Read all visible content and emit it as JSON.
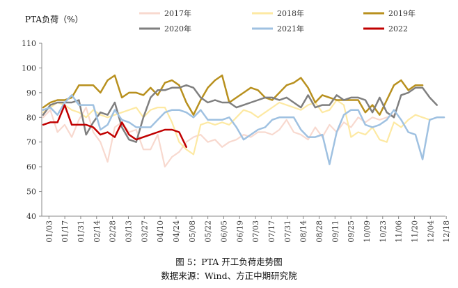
{
  "chart_data": {
    "type": "line",
    "ylabel": "PTA负荷（%）",
    "xlabel": "",
    "ylim": [
      40,
      110
    ],
    "yticks": [
      40,
      50,
      60,
      70,
      80,
      90,
      100,
      110
    ],
    "grid": false,
    "legend_position": "top",
    "x_tick_labels": [
      "01/03",
      "01/17",
      "01/31",
      "02/14",
      "02/28",
      "03/13",
      "03/27",
      "04/10",
      "04/24",
      "05/08",
      "05/22",
      "06/05",
      "06/19",
      "07/03",
      "07/17",
      "07/31",
      "08/14",
      "08/28",
      "09/11",
      "09/25",
      "10/09",
      "10/23",
      "11/06",
      "11/20",
      "12/04",
      "12/18"
    ],
    "series": [
      {
        "name": "2017年",
        "color": "#f8d9cf",
        "width": 2.2,
        "values": [
          80,
          83,
          74,
          77,
          72,
          79,
          84,
          74,
          70,
          62,
          76,
          78,
          74,
          75,
          67,
          67,
          73,
          60,
          64,
          66,
          70,
          72,
          73,
          70,
          71,
          68,
          70,
          71,
          73,
          72,
          74,
          74,
          73,
          75,
          79,
          74,
          73,
          71,
          76,
          72,
          77,
          74,
          78,
          76,
          80,
          78,
          80,
          79,
          80,
          81
        ]
      },
      {
        "name": "2018年",
        "color": "#fde9a3",
        "width": 2.2,
        "values": [
          82,
          84,
          86,
          85,
          83,
          82,
          80,
          83,
          81,
          80,
          81,
          82,
          83,
          84,
          80,
          83,
          84,
          84,
          78,
          70,
          67,
          65,
          77,
          78,
          77,
          78,
          77,
          80,
          83,
          82,
          80,
          82,
          84,
          86,
          85,
          84,
          83,
          85,
          86,
          82,
          83,
          87,
          85,
          72,
          74,
          73,
          76,
          71,
          70,
          78,
          76,
          79,
          81,
          80,
          79
        ]
      },
      {
        "name": "2019年",
        "color": "#b8901e",
        "width": 2.5,
        "values": [
          84,
          86,
          87,
          87,
          88,
          93,
          93,
          93,
          90,
          95,
          97,
          88,
          90,
          90,
          89,
          92,
          89,
          94,
          95,
          93,
          86,
          81,
          87,
          92,
          95,
          97,
          86,
          88,
          90,
          92,
          91,
          88,
          87,
          90,
          93,
          94,
          96,
          92,
          86,
          89,
          88,
          87,
          87,
          87,
          87,
          82,
          85,
          81,
          87,
          93,
          95,
          91,
          93,
          93
        ]
      },
      {
        "name": "2020年",
        "color": "#7f7f7f",
        "width": 2.5,
        "values": [
          81,
          85,
          86,
          86,
          86,
          87,
          73,
          78,
          82,
          81,
          86,
          76,
          71,
          70,
          80,
          88,
          91,
          91,
          92,
          92,
          93,
          92,
          88,
          86,
          87,
          86,
          86,
          84,
          85,
          86,
          87,
          88,
          88,
          87,
          88,
          86,
          84,
          89,
          84,
          85,
          85,
          89,
          87,
          88,
          88,
          87,
          82,
          88,
          82,
          80,
          89,
          90,
          92,
          92,
          88,
          85
        ]
      },
      {
        "name": "2021年",
        "color": "#9fc1e1",
        "width": 2.5,
        "values": [
          83,
          84,
          81,
          86,
          89,
          85,
          85,
          85,
          75,
          77,
          83,
          79,
          78,
          76,
          76,
          76,
          79,
          82,
          83,
          83,
          82,
          80,
          83,
          79,
          79,
          79,
          80,
          76,
          71,
          73,
          75,
          76,
          79,
          80,
          80,
          80,
          75,
          72,
          72,
          73,
          61,
          74,
          81,
          83,
          83,
          77,
          76,
          77,
          79,
          83,
          79,
          74,
          73,
          63,
          79,
          80,
          80
        ]
      },
      {
        "name": "2022",
        "color": "#c00000",
        "width": 2.5,
        "values": [
          77,
          78,
          78,
          85,
          77,
          77,
          77,
          76,
          73,
          74,
          72,
          78,
          73,
          71,
          72,
          73,
          74,
          75,
          75,
          74,
          68
        ]
      }
    ]
  },
  "caption": {
    "figure": "图 5：PTA 开工负荷走势图",
    "source": "数据来源：Wind、方正中期研究院"
  }
}
